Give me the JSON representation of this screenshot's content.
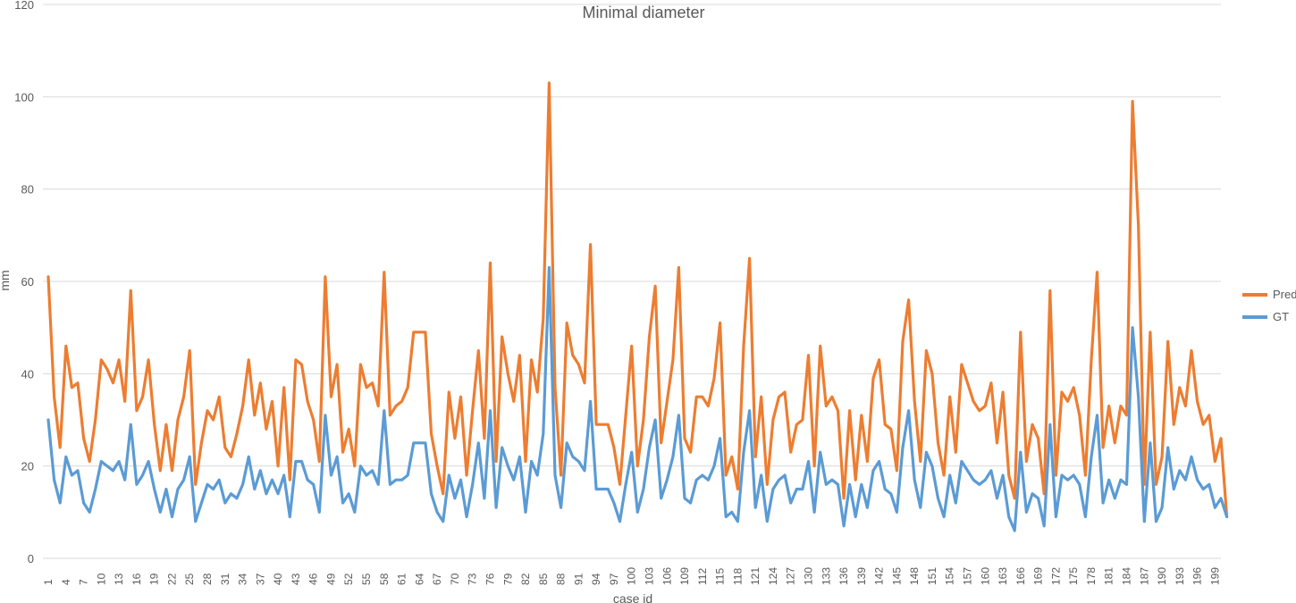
{
  "chart_data": {
    "type": "line",
    "title": "Minimal diameter",
    "xlabel": "case id",
    "ylabel": "mm",
    "ylim": [
      0,
      120
    ],
    "yticks": [
      0,
      20,
      40,
      60,
      80,
      100,
      120
    ],
    "grid": true,
    "legend_position": "right",
    "x_start": 1,
    "x_end": 200,
    "x_tick_labels": [
      "1",
      "4",
      "7",
      "10",
      "13",
      "16",
      "19",
      "22",
      "25",
      "28",
      "31",
      "34",
      "37",
      "40",
      "43",
      "46",
      "49",
      "52",
      "55",
      "58",
      "61",
      "64",
      "67",
      "70",
      "73",
      "76",
      "79",
      "82",
      "85",
      "88",
      "91",
      "94",
      "97",
      "100",
      "103",
      "106",
      "109",
      "112",
      "115",
      "118",
      "121",
      "124",
      "127",
      "130",
      "133",
      "136",
      "139",
      "142",
      "145",
      "148",
      "151",
      "154",
      "157",
      "160",
      "163",
      "166",
      "169",
      "172",
      "175",
      "178",
      "181",
      "184",
      "187",
      "190",
      "193",
      "196",
      "199"
    ],
    "series": [
      {
        "name": "Pred",
        "color": "#ed7d31",
        "values": [
          61,
          35,
          24,
          46,
          37,
          38,
          26,
          21,
          30,
          43,
          41,
          38,
          43,
          34,
          58,
          32,
          35,
          43,
          29,
          19,
          29,
          19,
          30,
          35,
          45,
          16,
          25,
          32,
          30,
          35,
          24,
          22,
          27,
          33,
          43,
          31,
          38,
          28,
          34,
          20,
          37,
          17,
          43,
          42,
          34,
          30,
          21,
          61,
          35,
          42,
          23,
          28,
          20,
          42,
          37,
          38,
          33,
          62,
          31,
          33,
          34,
          37,
          49,
          49,
          49,
          27,
          20,
          14,
          36,
          26,
          35,
          18,
          32,
          45,
          26,
          64,
          21,
          48,
          40,
          34,
          44,
          21,
          43,
          36,
          52,
          103,
          37,
          18,
          51,
          44,
          42,
          38,
          68,
          29,
          29,
          29,
          24,
          16,
          31,
          46,
          20,
          30,
          48,
          59,
          25,
          34,
          43,
          63,
          26,
          23,
          35,
          35,
          33,
          39,
          51,
          18,
          22,
          15,
          46,
          65,
          22,
          35,
          16,
          30,
          35,
          36,
          23,
          29,
          30,
          44,
          20,
          46,
          33,
          35,
          32,
          13,
          32,
          17,
          31,
          21,
          39,
          43,
          29,
          28,
          19,
          47,
          56,
          34,
          21,
          45,
          40,
          25,
          18,
          35,
          23,
          42,
          38,
          34,
          32,
          33,
          38,
          25,
          36,
          18,
          13,
          49,
          21,
          29,
          26,
          14,
          58,
          18,
          36,
          34,
          37,
          31,
          18,
          43,
          62,
          24,
          33,
          25,
          33,
          31,
          99,
          72,
          16,
          49,
          16,
          22,
          47,
          29,
          37,
          33,
          45,
          34,
          29,
          31,
          21,
          26,
          9
        ]
      },
      {
        "name": "GT",
        "color": "#5b9bd5",
        "values": [
          30,
          17,
          12,
          22,
          18,
          19,
          12,
          10,
          15,
          21,
          20,
          19,
          21,
          17,
          29,
          16,
          18,
          21,
          15,
          10,
          15,
          9,
          15,
          17,
          22,
          8,
          12,
          16,
          15,
          17,
          12,
          14,
          13,
          16,
          22,
          15,
          19,
          14,
          17,
          14,
          18,
          9,
          21,
          21,
          17,
          16,
          10,
          31,
          18,
          22,
          12,
          14,
          10,
          20,
          18,
          19,
          16,
          32,
          16,
          17,
          17,
          18,
          25,
          25,
          25,
          14,
          10,
          8,
          18,
          13,
          17,
          9,
          16,
          25,
          13,
          32,
          11,
          24,
          20,
          17,
          22,
          10,
          21,
          18,
          27,
          63,
          18,
          11,
          25,
          22,
          21,
          19,
          34,
          15,
          15,
          15,
          12,
          8,
          16,
          23,
          10,
          15,
          24,
          30,
          13,
          17,
          22,
          31,
          13,
          12,
          17,
          18,
          17,
          20,
          26,
          9,
          10,
          8,
          23,
          32,
          11,
          18,
          8,
          15,
          17,
          18,
          12,
          15,
          15,
          21,
          10,
          23,
          16,
          17,
          16,
          7,
          16,
          9,
          16,
          11,
          19,
          21,
          15,
          14,
          10,
          24,
          32,
          17,
          11,
          23,
          20,
          13,
          9,
          18,
          12,
          21,
          19,
          17,
          16,
          17,
          19,
          13,
          18,
          9,
          6,
          23,
          10,
          14,
          13,
          7,
          29,
          9,
          18,
          17,
          18,
          16,
          9,
          22,
          31,
          12,
          17,
          13,
          17,
          16,
          50,
          35,
          8,
          25,
          8,
          11,
          24,
          15,
          19,
          17,
          22,
          17,
          15,
          16,
          11,
          13,
          9
        ]
      }
    ]
  }
}
